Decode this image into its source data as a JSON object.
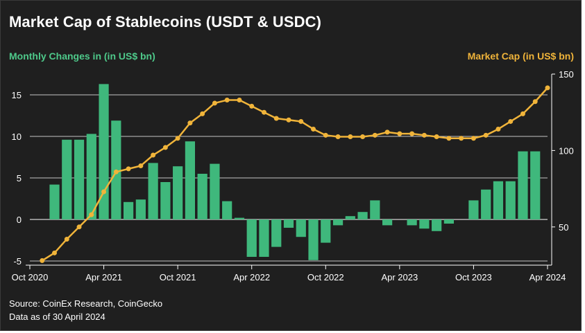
{
  "header": {
    "title": "Market Cap of Stablecoins (USDT & USDC)",
    "left_axis_label": "Monthly Changes in (in US$ bn)",
    "right_axis_label": "Market Cap (in US$ bn)"
  },
  "footer": {
    "source": "Source: CoinEx Research, CoinGecko",
    "as_of": "Data as of 30 April 2024"
  },
  "colors": {
    "background": "#1f1f1f",
    "bars": "#3fb87c",
    "line": "#f0b43a",
    "grid": "#ffffff",
    "text": "#ffffff"
  },
  "chart_data": {
    "type": "bar+line",
    "x_ticks": [
      "Oct 2020",
      "Apr 2021",
      "Oct 2021",
      "Apr 2022",
      "Oct 2022",
      "Apr 2023",
      "Oct 2023",
      "Apr 2024"
    ],
    "x_start": "Oct 2020",
    "x_end": "Apr 2024",
    "left_axis": {
      "ticks": [
        15,
        10,
        5,
        0,
        -5
      ],
      "range": [
        -5.5,
        17.5
      ]
    },
    "right_axis": {
      "ticks": [
        150,
        100,
        50
      ],
      "range": [
        25,
        150
      ]
    },
    "series": [
      {
        "kind": "bar",
        "axis": "left",
        "points": [
          {
            "x": "Dec 2020",
            "y": 4.2
          },
          {
            "x": "Jan 2021",
            "y": 9.6
          },
          {
            "x": "Feb 2021",
            "y": 9.6
          },
          {
            "x": "Mar 2021",
            "y": 10.3
          },
          {
            "x": "Apr 2021",
            "y": 16.3
          },
          {
            "x": "May 2021",
            "y": 11.9
          },
          {
            "x": "Jun 2021",
            "y": 2.1
          },
          {
            "x": "Jul 2021",
            "y": 2.4
          },
          {
            "x": "Aug 2021",
            "y": 6.8
          },
          {
            "x": "Sep 2021",
            "y": 4.5
          },
          {
            "x": "Oct 2021",
            "y": 6.4
          },
          {
            "x": "Nov 2021",
            "y": 9.4
          },
          {
            "x": "Dec 2021",
            "y": 5.5
          },
          {
            "x": "Jan 2022",
            "y": 6.7
          },
          {
            "x": "Feb 2022",
            "y": 2.2
          },
          {
            "x": "Mar 2022",
            "y": 0.2
          },
          {
            "x": "Apr 2022",
            "y": -4.5
          },
          {
            "x": "May 2022",
            "y": -4.5
          },
          {
            "x": "Jun 2022",
            "y": -3.3
          },
          {
            "x": "Jul 2022",
            "y": -1.0
          },
          {
            "x": "Aug 2022",
            "y": -2.1
          },
          {
            "x": "Sep 2022",
            "y": -4.9
          },
          {
            "x": "Oct 2022",
            "y": -2.8
          },
          {
            "x": "Nov 2022",
            "y": -0.7
          },
          {
            "x": "Dec 2022",
            "y": 0.4
          },
          {
            "x": "Jan 2023",
            "y": 0.9
          },
          {
            "x": "Feb 2023",
            "y": 2.3
          },
          {
            "x": "Mar 2023",
            "y": -0.7
          },
          {
            "x": "May 2023",
            "y": -0.7
          },
          {
            "x": "Jun 2023",
            "y": -1.1
          },
          {
            "x": "Jul 2023",
            "y": -1.4
          },
          {
            "x": "Aug 2023",
            "y": -0.5
          },
          {
            "x": "Oct 2023",
            "y": 2.3
          },
          {
            "x": "Nov 2023",
            "y": 3.6
          },
          {
            "x": "Dec 2023",
            "y": 4.6
          },
          {
            "x": "Jan 2024",
            "y": 4.6
          },
          {
            "x": "Feb 2024",
            "y": 8.2
          },
          {
            "x": "Mar 2024",
            "y": 8.2
          }
        ]
      },
      {
        "kind": "line",
        "axis": "right",
        "points": [
          {
            "x": "Nov 2020",
            "y": 28
          },
          {
            "x": "Dec 2020",
            "y": 33
          },
          {
            "x": "Jan 2021",
            "y": 42
          },
          {
            "x": "Feb 2021",
            "y": 50
          },
          {
            "x": "Mar 2021",
            "y": 58
          },
          {
            "x": "Apr 2021",
            "y": 73
          },
          {
            "x": "May 2021",
            "y": 86
          },
          {
            "x": "Jun 2021",
            "y": 88
          },
          {
            "x": "Jul 2021",
            "y": 90
          },
          {
            "x": "Aug 2021",
            "y": 97
          },
          {
            "x": "Sep 2021",
            "y": 102
          },
          {
            "x": "Oct 2021",
            "y": 108
          },
          {
            "x": "Nov 2021",
            "y": 118
          },
          {
            "x": "Dec 2021",
            "y": 124
          },
          {
            "x": "Jan 2022",
            "y": 131
          },
          {
            "x": "Feb 2022",
            "y": 133
          },
          {
            "x": "Mar 2022",
            "y": 133
          },
          {
            "x": "Apr 2022",
            "y": 129
          },
          {
            "x": "May 2022",
            "y": 125
          },
          {
            "x": "Jun 2022",
            "y": 121
          },
          {
            "x": "Jul 2022",
            "y": 120
          },
          {
            "x": "Aug 2022",
            "y": 119
          },
          {
            "x": "Sep 2022",
            "y": 114
          },
          {
            "x": "Oct 2022",
            "y": 110
          },
          {
            "x": "Nov 2022",
            "y": 109
          },
          {
            "x": "Dec 2022",
            "y": 109
          },
          {
            "x": "Jan 2023",
            "y": 109
          },
          {
            "x": "Feb 2023",
            "y": 110
          },
          {
            "x": "Mar 2023",
            "y": 112
          },
          {
            "x": "Apr 2023",
            "y": 111
          },
          {
            "x": "May 2023",
            "y": 111
          },
          {
            "x": "Jun 2023",
            "y": 110
          },
          {
            "x": "Jul 2023",
            "y": 109
          },
          {
            "x": "Aug 2023",
            "y": 108
          },
          {
            "x": "Sep 2023",
            "y": 108
          },
          {
            "x": "Oct 2023",
            "y": 108
          },
          {
            "x": "Nov 2023",
            "y": 110
          },
          {
            "x": "Dec 2023",
            "y": 114
          },
          {
            "x": "Jan 2024",
            "y": 119
          },
          {
            "x": "Feb 2024",
            "y": 124
          },
          {
            "x": "Mar 2024",
            "y": 132
          },
          {
            "x": "Apr 2024",
            "y": 141
          }
        ]
      }
    ],
    "grid": true
  }
}
